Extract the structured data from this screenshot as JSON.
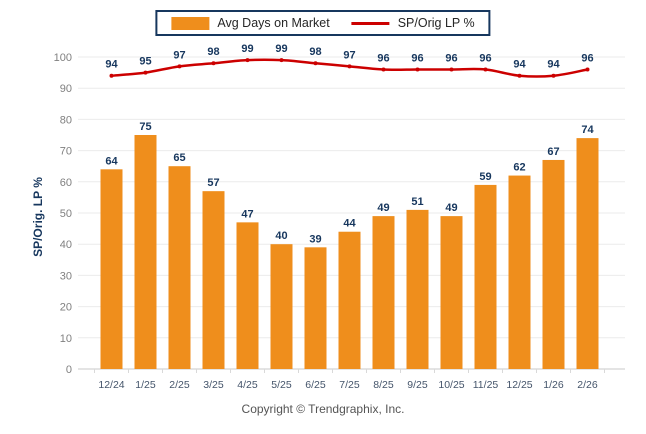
{
  "legend": {
    "bar_label": "Avg Days on Market",
    "line_label": "SP/Orig LP %"
  },
  "axes": {
    "y_title": "SP/Orig. LP %",
    "y_ticks": [
      0,
      10,
      20,
      30,
      40,
      50,
      60,
      70,
      80,
      90,
      100
    ]
  },
  "footer": {
    "copyright": "Copyright © Trendgraphix, Inc."
  },
  "colors": {
    "bar": "#EF8E1C",
    "line": "#CC0000",
    "value_label": "#17375E",
    "gridline": "#EBEBEB",
    "axis_line": "#C9C9C9",
    "tick": "#D9D9D9"
  },
  "chart_data": {
    "type": "bar",
    "subtype": "bar+line combo",
    "categories": [
      "12/24",
      "1/25",
      "2/25",
      "3/25",
      "4/25",
      "5/25",
      "6/25",
      "7/25",
      "8/25",
      "9/25",
      "10/25",
      "11/25",
      "12/25",
      "1/26",
      "2/26"
    ],
    "series": [
      {
        "name": "Avg Days on Market",
        "type": "bar",
        "color": "#EF8E1C",
        "values": [
          64,
          75,
          65,
          57,
          47,
          40,
          39,
          44,
          49,
          51,
          49,
          59,
          62,
          67,
          74
        ]
      },
      {
        "name": "SP/Orig LP %",
        "type": "line",
        "color": "#CC0000",
        "values": [
          94,
          95,
          97,
          98,
          99,
          99,
          98,
          97,
          96,
          96,
          96,
          96,
          94,
          94,
          96
        ]
      }
    ],
    "title": "",
    "xlabel": "",
    "ylabel": "SP/Orig. LP %",
    "ylim": [
      0,
      100
    ],
    "grid": true,
    "legend_position": "top-center",
    "data_labels": true
  }
}
